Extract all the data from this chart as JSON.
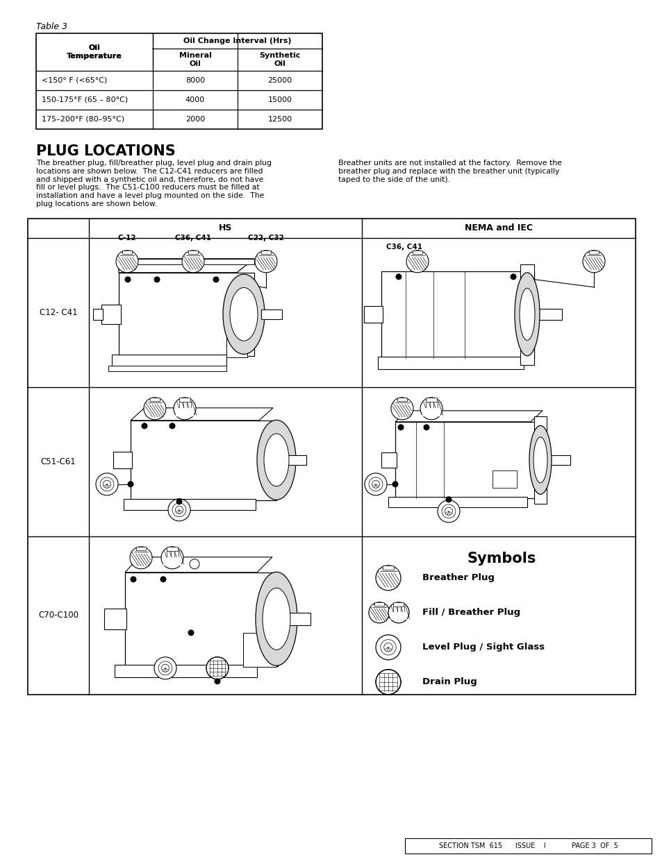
{
  "page_bg": "#ffffff",
  "table3_label": "Table 3",
  "table3_rows": [
    [
      "<150° F (<65°C)",
      "8000",
      "25000"
    ],
    [
      "150-175°F (65 – 80°C)",
      "4000",
      "15000"
    ],
    [
      "175–200°F (80–95°C)",
      "2000",
      "12500"
    ]
  ],
  "plug_locations_title": "PLUG LOCATIONS",
  "plug_text_left": "The breather plug, fill/breather plug, level plug and drain plug\nlocations are shown below.  The C12-C41 reducers are filled\nand shipped with a synthetic oil and, therefore, do not have\nfill or level plugs.  The C51-C100 reducers must be filled at\ninstallation and have a level plug mounted on the side.  The\nplug locations are shown below.",
  "plug_text_right": "Breather units are not installed at the factory.  Remove the\nbreather plug and replace with the breather unit (typically\ntaped to the side of the unit).",
  "grid_row_labels": [
    "C12- C41",
    "C51-C61",
    "C70-C100"
  ],
  "symbols_title": "Symbols",
  "symbols": [
    {
      "icon": "breather",
      "label": "Breather Plug"
    },
    {
      "icon": "fill_breather",
      "label": "Fill / Breather Plug"
    },
    {
      "icon": "level",
      "label": "Level Plug / Sight Glass"
    },
    {
      "icon": "drain",
      "label": "Drain Plug"
    }
  ],
  "footer_text": "SECTION TSM  615      ISSUE    I            PAGE 3  OF  5"
}
